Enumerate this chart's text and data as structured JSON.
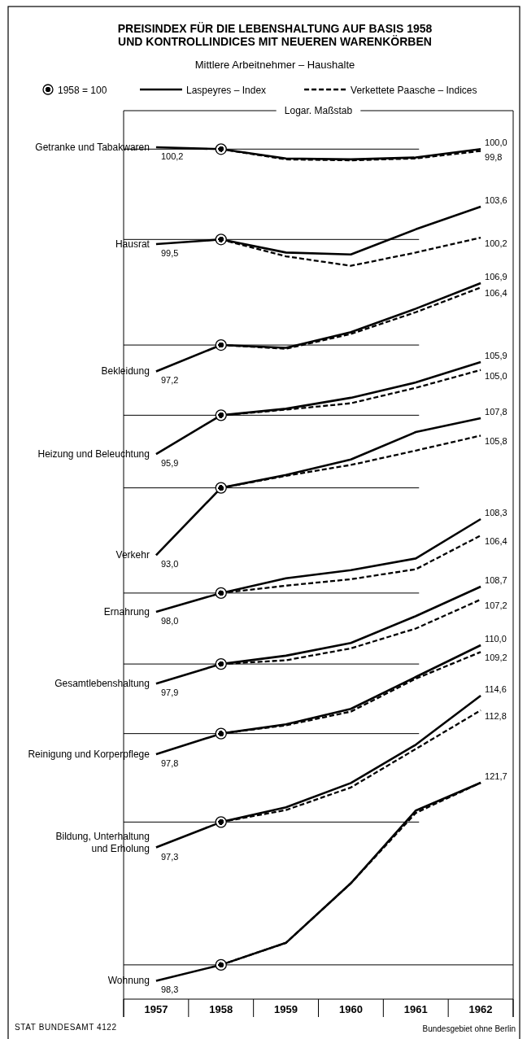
{
  "chart_data": [
    {
      "type": "line",
      "title": "PREISINDEX FÜR DIE LEBENSHALTUNG AUF BASIS 1958 UND KONTROLLINDICES MIT NEUEREN WARENKÖRBEN",
      "subtitle": "Mittlere Arbeitnehmer – Haushalte",
      "ylabel": "Getranke und Tabakwaren",
      "legend": "top",
      "tick_labels": false,
      "log": true,
      "annotations": [
        "Logar. Maßstab"
      ],
      "categories": [
        "1957",
        "1958",
        "1959",
        "1960",
        "1961",
        "1962"
      ],
      "ref_lines": [
        {
          "axis": "y",
          "value": 100
        }
      ],
      "series": [
        {
          "name": "1958 = 100",
          "type": "scatter",
          "marker": "circle",
          "color": "#000000",
          "values": [
            null,
            100,
            null,
            null,
            null,
            null
          ]
        },
        {
          "name": "Laspeyres – Index",
          "color": "#000000",
          "line_style": "solid",
          "values": [
            100.2,
            100,
            99.0,
            98.9,
            99.1,
            100.0
          ],
          "value_labels": [
            "100,2",
            null,
            null,
            null,
            null,
            "100,0"
          ]
        },
        {
          "name": "Verkettete Paasche – Indices",
          "color": "#000000",
          "line_style": "dashed",
          "values": [
            null,
            100,
            98.9,
            98.8,
            99.0,
            99.8
          ],
          "value_labels": [
            null,
            null,
            null,
            null,
            null,
            "99,8"
          ]
        }
      ]
    },
    {
      "type": "line",
      "ylabel": "Hausrat",
      "tick_labels": false,
      "log": true,
      "categories": [
        "1957",
        "1958",
        "1959",
        "1960",
        "1961",
        "1962"
      ],
      "ref_lines": [
        {
          "axis": "y",
          "value": 100
        }
      ],
      "series": [
        {
          "type": "scatter",
          "marker": "circle",
          "color": "#000000",
          "values": [
            null,
            100,
            null,
            null,
            null,
            null
          ]
        },
        {
          "color": "#000000",
          "line_style": "solid",
          "values": [
            99.5,
            100,
            98.6,
            98.4,
            101.1,
            103.6
          ],
          "value_labels": [
            "99,5",
            null,
            null,
            null,
            null,
            "103,6"
          ]
        },
        {
          "color": "#000000",
          "line_style": "dashed",
          "values": [
            null,
            100,
            98.2,
            97.2,
            98.6,
            100.2
          ],
          "value_labels": [
            null,
            null,
            null,
            null,
            null,
            "100,2"
          ]
        }
      ]
    },
    {
      "type": "line",
      "ylabel": "Bekleidung",
      "tick_labels": false,
      "log": true,
      "categories": [
        "1957",
        "1958",
        "1959",
        "1960",
        "1961",
        "1962"
      ],
      "ref_lines": [
        {
          "axis": "y",
          "value": 100
        }
      ],
      "series": [
        {
          "type": "scatter",
          "marker": "circle",
          "color": "#000000",
          "values": [
            null,
            100,
            null,
            null,
            null,
            null
          ]
        },
        {
          "color": "#000000",
          "line_style": "solid",
          "values": [
            97.2,
            100,
            99.7,
            101.4,
            104.0,
            106.9
          ],
          "value_labels": [
            "97,2",
            null,
            null,
            null,
            null,
            "106,9"
          ]
        },
        {
          "color": "#000000",
          "line_style": "dashed",
          "values": [
            null,
            100,
            99.6,
            101.2,
            103.6,
            106.4
          ],
          "value_labels": [
            null,
            null,
            null,
            null,
            null,
            "106,4"
          ]
        }
      ]
    },
    {
      "type": "line",
      "ylabel": "Heizung und Beleuchtung",
      "tick_labels": false,
      "log": true,
      "categories": [
        "1957",
        "1958",
        "1959",
        "1960",
        "1961",
        "1962"
      ],
      "ref_lines": [
        {
          "axis": "y",
          "value": 100
        }
      ],
      "series": [
        {
          "type": "scatter",
          "marker": "circle",
          "color": "#000000",
          "values": [
            null,
            100,
            null,
            null,
            null,
            null
          ]
        },
        {
          "color": "#000000",
          "line_style": "solid",
          "values": [
            95.9,
            100,
            100.7,
            101.9,
            103.6,
            105.9
          ],
          "value_labels": [
            "95,9",
            null,
            null,
            null,
            null,
            "105,9"
          ]
        },
        {
          "color": "#000000",
          "line_style": "dashed",
          "values": [
            null,
            100,
            100.6,
            101.3,
            103.0,
            105.0
          ],
          "value_labels": [
            null,
            null,
            null,
            null,
            null,
            "105,0"
          ]
        }
      ]
    },
    {
      "type": "line",
      "ylabel": "Verkehr",
      "tick_labels": false,
      "log": true,
      "categories": [
        "1957",
        "1958",
        "1959",
        "1960",
        "1961",
        "1962"
      ],
      "ref_lines": [
        {
          "axis": "y",
          "value": 100
        }
      ],
      "series": [
        {
          "type": "scatter",
          "marker": "circle",
          "color": "#000000",
          "values": [
            null,
            100,
            null,
            null,
            null,
            null
          ]
        },
        {
          "color": "#000000",
          "line_style": "solid",
          "values": [
            93.0,
            100,
            101.4,
            103.1,
            106.2,
            107.8
          ],
          "value_labels": [
            "93,0",
            null,
            null,
            null,
            null,
            "107,8"
          ]
        },
        {
          "color": "#000000",
          "line_style": "dashed",
          "values": [
            null,
            100,
            101.3,
            102.5,
            104.1,
            105.8
          ],
          "value_labels": [
            null,
            null,
            null,
            null,
            null,
            "105,8"
          ]
        }
      ]
    },
    {
      "type": "line",
      "ylabel": "Ernahrung",
      "tick_labels": false,
      "log": true,
      "categories": [
        "1957",
        "1958",
        "1959",
        "1960",
        "1961",
        "1962"
      ],
      "ref_lines": [
        {
          "axis": "y",
          "value": 100
        }
      ],
      "series": [
        {
          "type": "scatter",
          "marker": "circle",
          "color": "#000000",
          "values": [
            null,
            100,
            null,
            null,
            null,
            null
          ]
        },
        {
          "color": "#000000",
          "line_style": "solid",
          "values": [
            98.0,
            100,
            101.6,
            102.5,
            103.8,
            108.3
          ],
          "value_labels": [
            "98,0",
            null,
            null,
            null,
            null,
            "108,3"
          ]
        },
        {
          "color": "#000000",
          "line_style": "dashed",
          "values": [
            null,
            100,
            100.8,
            101.5,
            102.6,
            106.4
          ],
          "value_labels": [
            null,
            null,
            null,
            null,
            null,
            "106,4"
          ]
        }
      ]
    },
    {
      "type": "line",
      "ylabel": "Gesamtlebenshaltung",
      "tick_labels": false,
      "log": true,
      "categories": [
        "1957",
        "1958",
        "1959",
        "1960",
        "1961",
        "1962"
      ],
      "ref_lines": [
        {
          "axis": "y",
          "value": 100
        }
      ],
      "series": [
        {
          "type": "scatter",
          "marker": "circle",
          "color": "#000000",
          "values": [
            null,
            100,
            null,
            null,
            null,
            null
          ]
        },
        {
          "color": "#000000",
          "line_style": "solid",
          "values": [
            97.9,
            100,
            100.9,
            102.3,
            105.3,
            108.7
          ],
          "value_labels": [
            "97,9",
            null,
            null,
            null,
            null,
            "108,7"
          ]
        },
        {
          "color": "#000000",
          "line_style": "dashed",
          "values": [
            null,
            100,
            100.4,
            101.7,
            103.9,
            107.2
          ],
          "value_labels": [
            null,
            null,
            null,
            null,
            null,
            "107,2"
          ]
        }
      ]
    },
    {
      "type": "line",
      "ylabel": "Reinigung und Korperpflege",
      "tick_labels": false,
      "log": true,
      "categories": [
        "1957",
        "1958",
        "1959",
        "1960",
        "1961",
        "1962"
      ],
      "ref_lines": [
        {
          "axis": "y",
          "value": 100
        }
      ],
      "series": [
        {
          "type": "scatter",
          "marker": "circle",
          "color": "#000000",
          "values": [
            null,
            100,
            null,
            null,
            null,
            null
          ]
        },
        {
          "color": "#000000",
          "line_style": "solid",
          "values": [
            97.8,
            100,
            101.0,
            102.7,
            106.3,
            110.0
          ],
          "value_labels": [
            "97,8",
            null,
            null,
            null,
            null,
            "110,0"
          ]
        },
        {
          "color": "#000000",
          "line_style": "dashed",
          "values": [
            null,
            100,
            100.9,
            102.4,
            106.1,
            109.2
          ],
          "value_labels": [
            null,
            null,
            null,
            null,
            null,
            "109,2"
          ]
        }
      ]
    },
    {
      "type": "line",
      "ylabel": "Bildung, Unterhaltung und Erholung",
      "tick_labels": false,
      "log": true,
      "categories": [
        "1957",
        "1958",
        "1959",
        "1960",
        "1961",
        "1962"
      ],
      "ref_lines": [
        {
          "axis": "y",
          "value": 100
        }
      ],
      "series": [
        {
          "type": "scatter",
          "marker": "circle",
          "color": "#000000",
          "values": [
            null,
            100,
            null,
            null,
            null,
            null
          ]
        },
        {
          "color": "#000000",
          "line_style": "solid",
          "values": [
            97.3,
            100,
            101.6,
            104.3,
            108.7,
            114.6
          ],
          "value_labels": [
            "97,3",
            null,
            null,
            null,
            null,
            "114,6"
          ]
        },
        {
          "color": "#000000",
          "line_style": "dashed",
          "values": [
            null,
            100,
            101.3,
            103.8,
            108.2,
            112.8
          ],
          "value_labels": [
            null,
            null,
            null,
            null,
            null,
            "112,8"
          ]
        }
      ]
    },
    {
      "type": "line",
      "ylabel": "Wohnung",
      "tick_labels": "x",
      "log": true,
      "annotations": [
        "STAT BUNDESAMT 4122",
        "Bundesgebiet ohne Berlin"
      ],
      "categories": [
        "1957",
        "1958",
        "1959",
        "1960",
        "1961",
        "1962"
      ],
      "ref_lines": [
        {
          "axis": "y",
          "value": 100
        }
      ],
      "series": [
        {
          "type": "scatter",
          "marker": "circle",
          "color": "#000000",
          "values": [
            null,
            100,
            null,
            null,
            null,
            null
          ]
        },
        {
          "color": "#000000",
          "line_style": "solid",
          "values": [
            98.3,
            100,
            102.4,
            109.2,
            118.1,
            121.7
          ],
          "value_labels": [
            "98,3",
            null,
            null,
            null,
            null,
            "121,7"
          ]
        },
        {
          "color": "#000000",
          "line_style": "dashed",
          "values": [
            null,
            100,
            102.4,
            109.2,
            117.8,
            121.7
          ]
        }
      ]
    }
  ]
}
